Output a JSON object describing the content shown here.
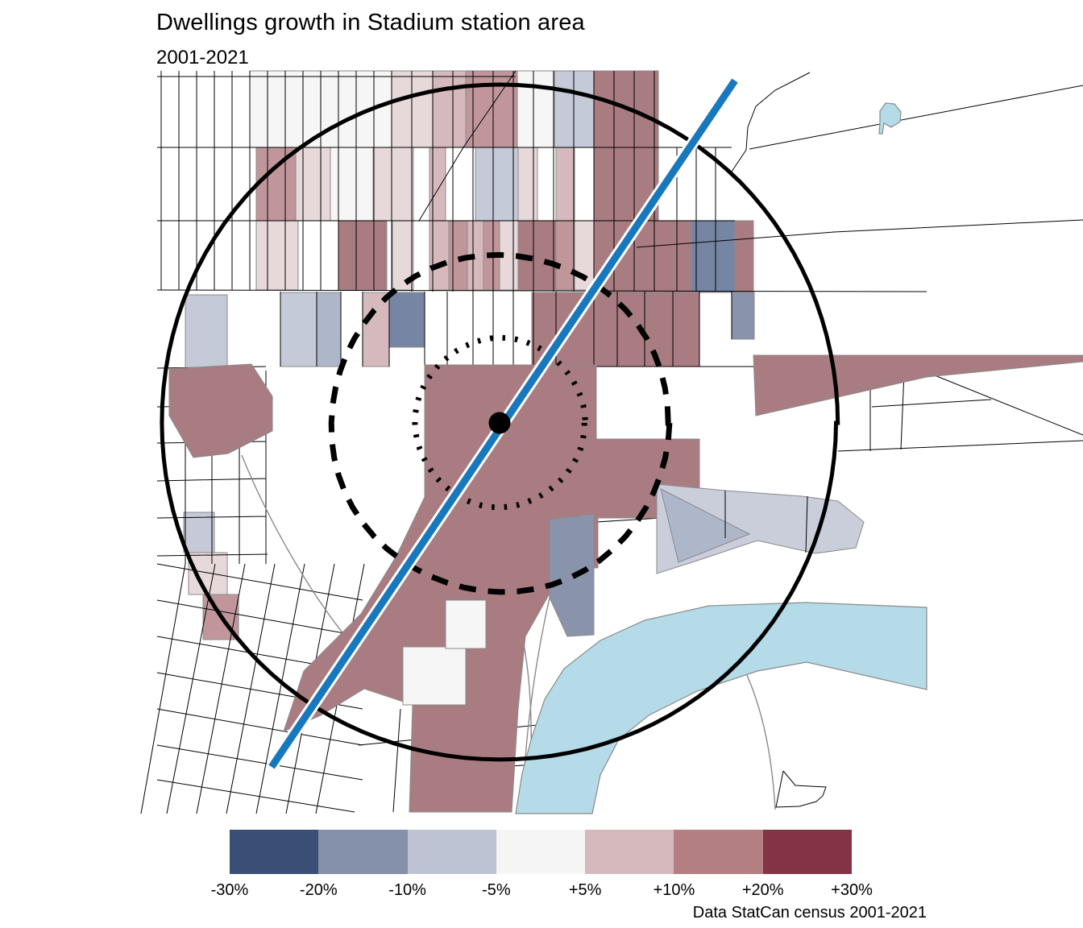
{
  "header": {
    "title": "Dwellings growth in Stadium station area",
    "subtitle": "2001-2021"
  },
  "legend": {
    "labels": [
      "-30%",
      "-20%",
      "-10%",
      "-5%",
      "+5%",
      "+10%",
      "+20%",
      "+30%"
    ],
    "colors": [
      "#394F76",
      "#8590AA",
      "#BEC3D3",
      "#F6F5F6",
      "#D6B9BD",
      "#B47F82",
      "#833344"
    ]
  },
  "caption": {
    "text": "Data StatCan census 2001-2021"
  },
  "map": {
    "colors": {
      "water": "#B5DBE8",
      "transit_line": "#1878BE",
      "ring": "#000000",
      "growth_strong": "#A97C81",
      "growth_mid": "#C0969B",
      "growth_light": "#D6B9BD",
      "stable": "#F7F6F7",
      "decline_light": "#C5CAD8",
      "decline_mid": "#AEB6C9",
      "decline_strong": "#7585A3"
    },
    "markers": {
      "station": "station-marker",
      "rings": [
        "radius-ring-outer",
        "radius-ring-middle",
        "radius-ring-inner"
      ]
    }
  }
}
